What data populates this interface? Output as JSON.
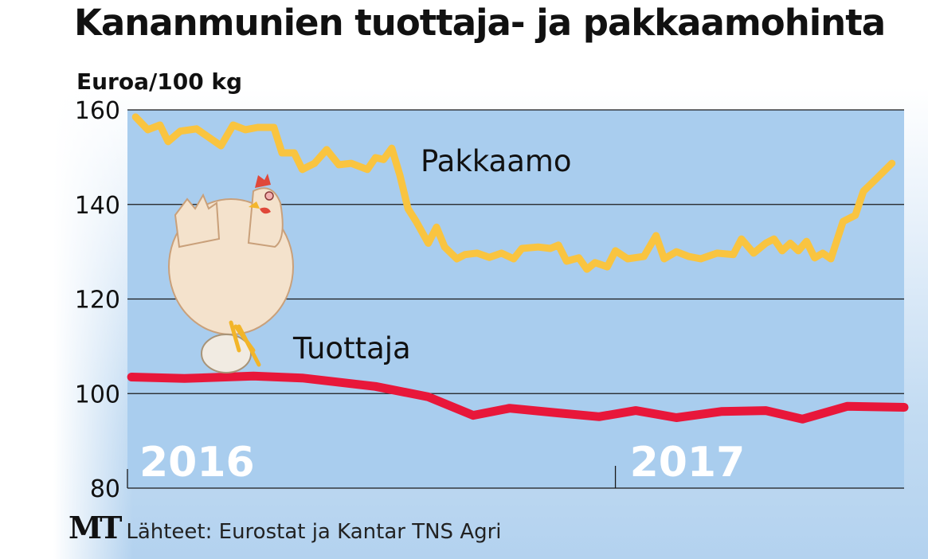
{
  "header": {
    "title": "Kananmunien tuottaja- ja pakkaamohinta"
  },
  "footer": {
    "logo": "MT",
    "source": "Lähteet: Eurostat ja Kantar TNS Agri"
  },
  "chart_data": {
    "type": "line",
    "title": "Kananmunien tuottaja- ja pakkaamohinta",
    "ylabel": "Euroa/100 kg",
    "xlabel": "",
    "x_unit": "months since start of 2016",
    "xlim": [
      0,
      19.1
    ],
    "ylim": [
      80,
      160
    ],
    "yticks": [
      80,
      100,
      120,
      140,
      160
    ],
    "ytick_labels": [
      "80",
      "100",
      "120",
      "140",
      "160"
    ],
    "year_labels": [
      {
        "label": "2016",
        "x": 0
      },
      {
        "label": "2017",
        "x": 12
      }
    ],
    "grid": true,
    "colors": {
      "plot_bg": "#a9cdee",
      "Pakkaamo": "#f9c440",
      "Tuottaja": "#e8173a"
    },
    "series": [
      {
        "name": "Pakkaamo",
        "x": [
          0.2,
          0.5,
          0.8,
          1.0,
          1.3,
          1.7,
          2.3,
          2.6,
          2.9,
          3.2,
          3.6,
          3.8,
          4.1,
          4.3,
          4.6,
          4.9,
          5.2,
          5.5,
          5.9,
          6.1,
          6.3,
          6.5,
          6.7,
          6.9,
          7.1,
          7.4,
          7.6,
          7.8,
          8.1,
          8.3,
          8.6,
          8.9,
          9.2,
          9.5,
          9.7,
          10.1,
          10.4,
          10.6,
          10.8,
          11.1,
          11.3,
          11.5,
          11.8,
          12.0,
          12.3,
          12.7,
          13.0,
          13.2,
          13.5,
          13.8,
          14.1,
          14.5,
          14.9,
          15.1,
          15.4,
          15.7,
          15.9,
          16.1,
          16.3,
          16.5,
          16.7,
          16.9,
          17.1,
          17.3,
          17.6,
          17.9,
          18.1,
          18.4,
          18.8
        ],
        "y": [
          158.5,
          155.8,
          156.8,
          153.3,
          155.5,
          156,
          152.4,
          156.8,
          155.8,
          156.3,
          156.3,
          150.9,
          150.9,
          147.4,
          148.7,
          151.6,
          148.4,
          148.7,
          147.4,
          149.9,
          149.5,
          151.9,
          146.2,
          139.1,
          136.4,
          131.8,
          135.2,
          131,
          128.5,
          129.4,
          129.7,
          128.8,
          129.7,
          128.5,
          130.7,
          131,
          130.7,
          131.4,
          128,
          128.7,
          126.3,
          127.7,
          126.8,
          130.2,
          128.5,
          129,
          133.4,
          128.5,
          130,
          129,
          128.5,
          129.7,
          129.4,
          132.7,
          129.7,
          131.8,
          132.7,
          130.2,
          131.8,
          130.2,
          132.2,
          128.7,
          129.7,
          128.5,
          136.4,
          137.7,
          142.8,
          145.3,
          148.7
        ]
      },
      {
        "name": "Tuottaja",
        "x": [
          0.1,
          1.4,
          3.1,
          4.3,
          6.1,
          7.4,
          8.5,
          9.4,
          10.6,
          11.6,
          12.5,
          13.5,
          14.6,
          15.7,
          16.6,
          17.7,
          19.1
        ],
        "y": [
          103.5,
          103.2,
          103.7,
          103.3,
          101.5,
          99.3,
          95.4,
          96.9,
          95.9,
          95.1,
          96.4,
          94.9,
          96.2,
          96.4,
          94.6,
          97.3,
          97.1
        ]
      }
    ]
  }
}
